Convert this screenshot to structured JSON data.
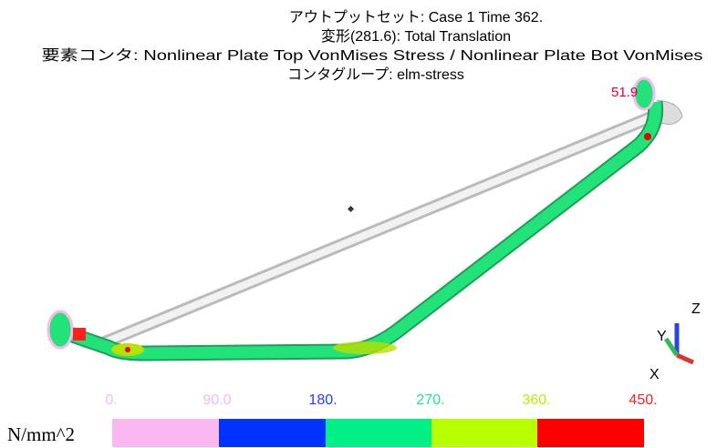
{
  "header": {
    "lines": [
      "アウトプットセット: Case 1 Time 362.",
      "変形(281.6): Total Translation",
      "要素コンタ: Nonlinear Plate Top VonMises Stress / Nonlinear Plate Bot VonMises",
      "コンタグループ: elm-stress"
    ]
  },
  "model": {
    "max_label": "51.9",
    "axes": [
      "Z",
      "Y",
      "X"
    ]
  },
  "legend": {
    "unit": "N/mm^2",
    "ticks": [
      "0.",
      "90.0",
      "180.",
      "270.",
      "360.",
      "450."
    ]
  }
}
